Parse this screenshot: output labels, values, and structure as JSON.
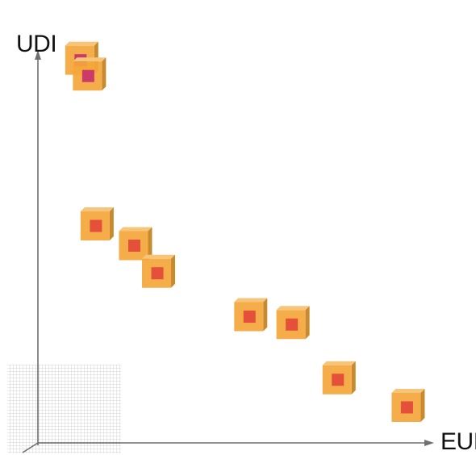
{
  "diagram": {
    "y_axis_label": "UDI",
    "x_axis_label": "EUI",
    "grid_visible": true,
    "colors": {
      "axis": "#6f6f6f",
      "grid": "#9a9a9a",
      "cube_front": "#f3a63a",
      "cube_top": "#f7c57a",
      "cube_side": "#c88a2e",
      "core_red": "#e4503a",
      "core_magenta": "#cc3a6a"
    },
    "points": [
      {
        "id": "p1",
        "eui": 0.09,
        "udi": 0.97,
        "core": "magenta"
      },
      {
        "id": "p2",
        "eui": 0.11,
        "udi": 0.93,
        "core": "magenta"
      },
      {
        "id": "p3",
        "eui": 0.13,
        "udi": 0.55,
        "core": "red"
      },
      {
        "id": "p4",
        "eui": 0.23,
        "udi": 0.5,
        "core": "red"
      },
      {
        "id": "p5",
        "eui": 0.29,
        "udi": 0.43,
        "core": "red"
      },
      {
        "id": "p6",
        "eui": 0.53,
        "udi": 0.32,
        "core": "red"
      },
      {
        "id": "p7",
        "eui": 0.64,
        "udi": 0.3,
        "core": "red"
      },
      {
        "id": "p8",
        "eui": 0.76,
        "udi": 0.16,
        "core": "red"
      },
      {
        "id": "p9",
        "eui": 0.94,
        "udi": 0.09,
        "core": "red"
      }
    ]
  }
}
